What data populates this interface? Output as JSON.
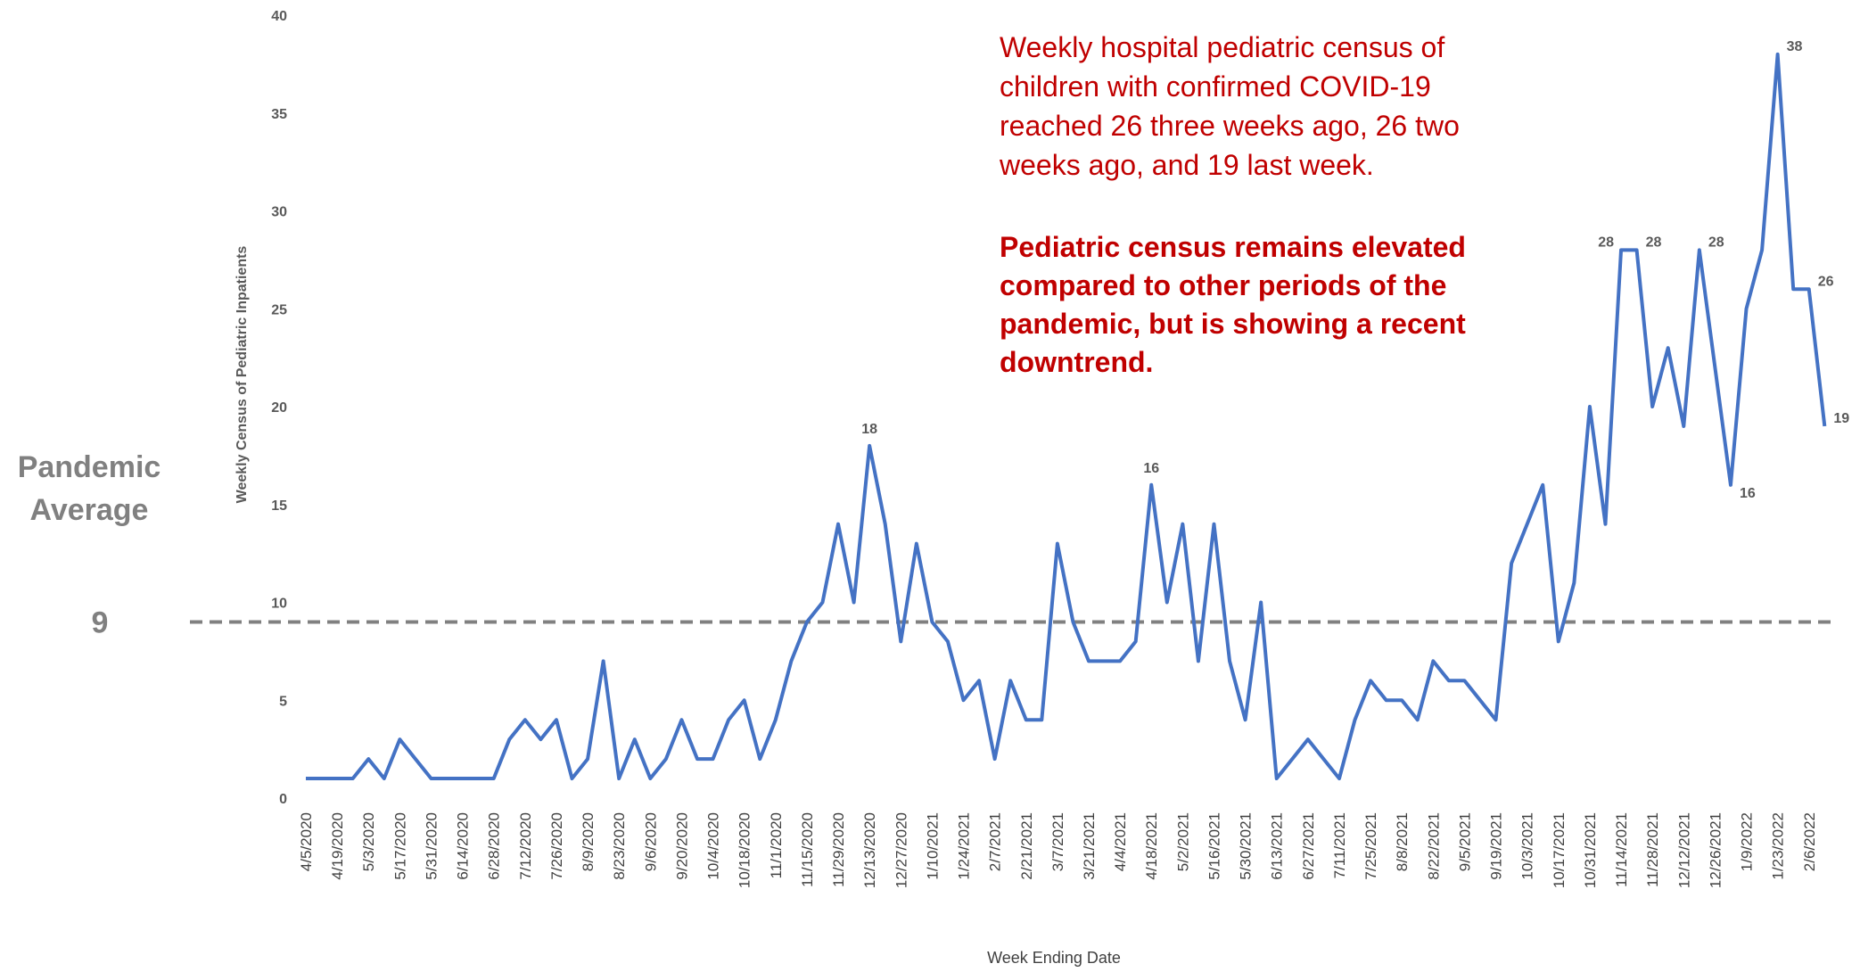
{
  "chart_data": {
    "type": "line",
    "y_axis_label": "Weekly Census of Pediatric Inpatients",
    "x_axis_label": "Week Ending Date",
    "annotations": [
      "Weekly hospital pediatric census of",
      "children with confirmed COVID-19",
      "reached 26 three weeks ago, 26 two",
      "weeks ago, and 19 last week."
    ],
    "highlight": [
      "Pediatric census remains elevated",
      "compared to other periods of the",
      "pandemic, but is showing a recent",
      "downtrend."
    ],
    "reference_line": {
      "label": "Pandemic Average",
      "value": 9,
      "color": "#808080"
    },
    "ylim": [
      0,
      40
    ],
    "yticks": [
      0,
      5,
      10,
      15,
      20,
      25,
      30,
      35,
      40
    ],
    "categories": [
      "4/5/2020",
      null,
      "4/19/2020",
      null,
      "5/3/2020",
      null,
      "5/17/2020",
      null,
      "5/31/2020",
      null,
      "6/14/2020",
      null,
      "6/28/2020",
      null,
      "7/12/2020",
      null,
      "7/26/2020",
      null,
      "8/9/2020",
      null,
      "8/23/2020",
      null,
      "9/6/2020",
      null,
      "9/20/2020",
      null,
      "10/4/2020",
      null,
      "10/18/2020",
      null,
      "11/1/2020",
      null,
      "11/15/2020",
      null,
      "11/29/2020",
      null,
      "12/13/2020",
      null,
      "12/27/2020",
      null,
      "1/10/2021",
      null,
      "1/24/2021",
      null,
      "2/7/2021",
      null,
      "2/21/2021",
      null,
      "3/7/2021",
      null,
      "3/21/2021",
      null,
      "4/4/2021",
      null,
      "4/18/2021",
      null,
      "5/2/2021",
      null,
      "5/16/2021",
      null,
      "5/30/2021",
      null,
      "6/13/2021",
      null,
      "6/27/2021",
      null,
      "7/11/2021",
      null,
      "7/25/2021",
      null,
      "8/8/2021",
      null,
      "8/22/2021",
      null,
      "9/5/2021",
      null,
      "9/19/2021",
      null,
      "10/3/2021",
      null,
      "10/17/2021",
      null,
      "10/31/2021",
      null,
      "11/14/2021",
      null,
      "11/28/2021",
      null,
      "12/12/2021",
      null,
      "12/26/2021",
      null,
      "1/9/2022",
      null,
      "1/23/2022",
      null,
      "2/6/2022",
      null
    ],
    "color": "#4472c4",
    "values": [
      1,
      1,
      1,
      1,
      2,
      1,
      3,
      2,
      1,
      1,
      1,
      1,
      1,
      3,
      4,
      3,
      4,
      1,
      2,
      7,
      1,
      3,
      1,
      2,
      4,
      2,
      2,
      4,
      5,
      2,
      4,
      7,
      9,
      10,
      14,
      10,
      18,
      14,
      8,
      13,
      9,
      8,
      5,
      6,
      2,
      6,
      4,
      4,
      13,
      9,
      7,
      7,
      7,
      8,
      16,
      10,
      14,
      7,
      14,
      7,
      4,
      10,
      1,
      2,
      3,
      2,
      1,
      4,
      6,
      5,
      5,
      4,
      7,
      6,
      6,
      5,
      4,
      12,
      14,
      16,
      8,
      11,
      20,
      14,
      28,
      28,
      20,
      23,
      19,
      28,
      22,
      16,
      25,
      28,
      38,
      26,
      26,
      19
    ],
    "value_labels": [
      null,
      null,
      null,
      null,
      null,
      null,
      null,
      null,
      null,
      null,
      null,
      null,
      null,
      null,
      null,
      null,
      null,
      null,
      null,
      null,
      null,
      null,
      null,
      null,
      null,
      null,
      null,
      null,
      null,
      null,
      null,
      null,
      null,
      null,
      null,
      null,
      "18",
      null,
      null,
      null,
      null,
      null,
      null,
      null,
      null,
      null,
      null,
      null,
      null,
      null,
      null,
      null,
      null,
      null,
      "16",
      null,
      null,
      null,
      null,
      null,
      null,
      null,
      null,
      null,
      null,
      null,
      null,
      null,
      null,
      null,
      null,
      null,
      null,
      null,
      null,
      null,
      null,
      null,
      null,
      null,
      null,
      null,
      null,
      null,
      "28",
      "28",
      null,
      null,
      null,
      "28",
      null,
      "16",
      null,
      null,
      "38",
      null,
      "26",
      "19"
    ]
  }
}
